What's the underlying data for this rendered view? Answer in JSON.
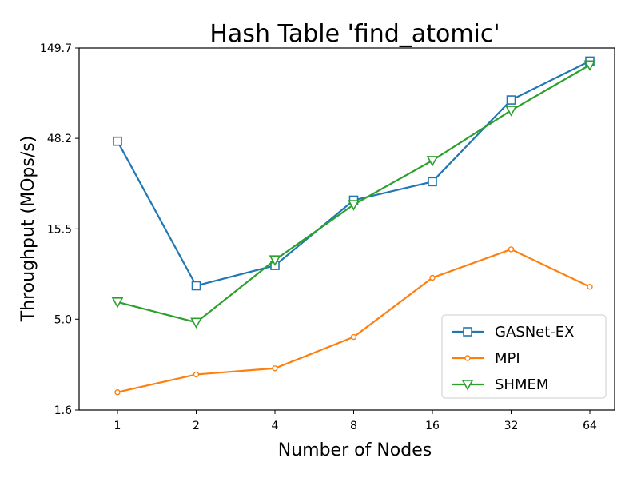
{
  "chart_data": {
    "type": "line",
    "title": "Hash Table 'find_atomic'",
    "xlabel": "Number of Nodes",
    "ylabel": "Throughput (MOps/s)",
    "x": [
      1,
      2,
      4,
      8,
      16,
      32,
      64
    ],
    "x_tick_labels": [
      "1",
      "2",
      "4",
      "8",
      "16",
      "32",
      "64"
    ],
    "y_scale": "log",
    "ylim": [
      1.6,
      149.7
    ],
    "y_tick_values": [
      1.6,
      5.0,
      15.5,
      48.2,
      149.7
    ],
    "y_tick_labels": [
      "1.6",
      "5.0",
      "15.5",
      "48.2",
      "149.7"
    ],
    "grid": false,
    "legend_position": "lower-right",
    "series": [
      {
        "name": "GASNet-EX",
        "color": "#1f77b4",
        "marker": "square",
        "values": [
          46.5,
          7.6,
          9.8,
          22.2,
          28.0,
          78.0,
          127.0
        ]
      },
      {
        "name": "MPI",
        "color": "#ff7f0e",
        "marker": "circle",
        "values": [
          2.0,
          2.5,
          2.7,
          4.0,
          8.4,
          12.0,
          7.5
        ]
      },
      {
        "name": "SHMEM",
        "color": "#2ca02c",
        "marker": "triangle-down",
        "values": [
          6.2,
          4.8,
          10.5,
          21.0,
          36.5,
          68.5,
          121.0
        ]
      }
    ]
  }
}
